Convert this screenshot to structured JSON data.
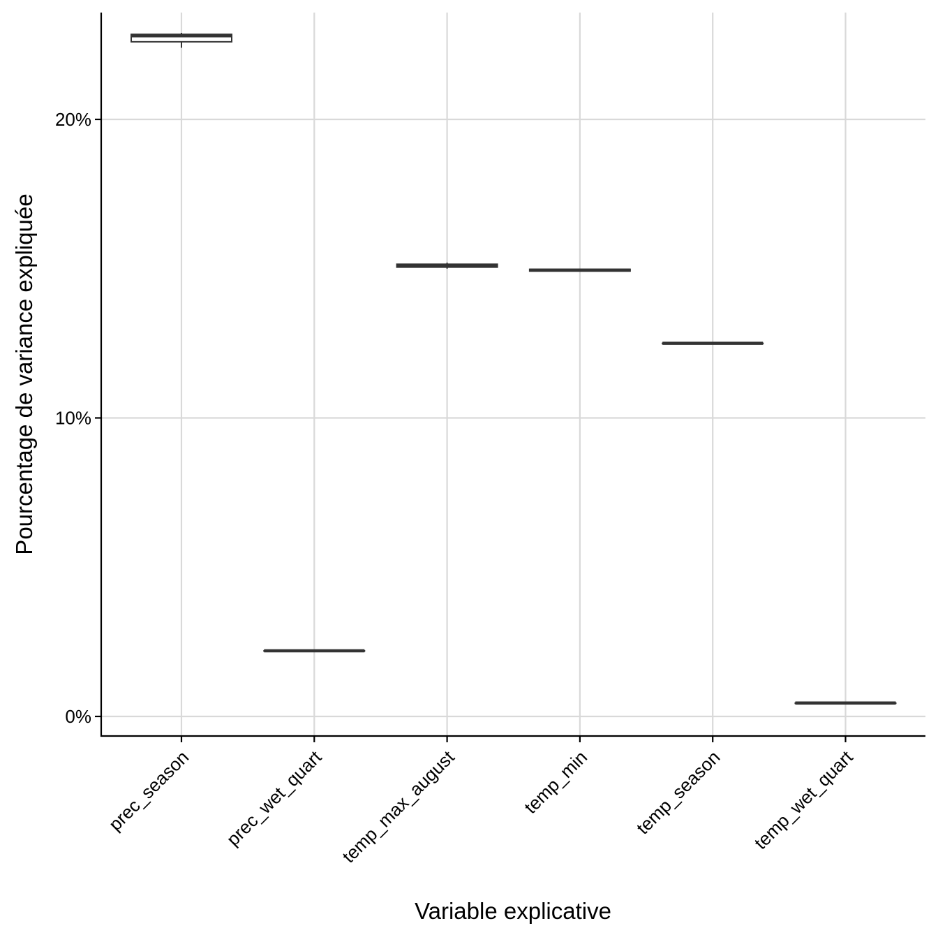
{
  "chart_data": {
    "type": "box",
    "title": "",
    "xlabel": "Variable explicative",
    "ylabel": "Pourcentage de variance expliquée",
    "ylim": [
      -0.6,
      23.6
    ],
    "y_ticks": [
      0,
      10,
      20
    ],
    "y_tick_labels": [
      "0%",
      "10%",
      "20%"
    ],
    "grid": true,
    "legend": "none",
    "categories": [
      "prec_season",
      "prec_wet_quart",
      "temp_max_august",
      "temp_min",
      "temp_season",
      "temp_wet_quart"
    ],
    "boxes": [
      {
        "category": "prec_season",
        "whisker_low": 22.4,
        "q1": 22.6,
        "median": 22.8,
        "q3": 22.85,
        "whisker_high": 22.9
      },
      {
        "category": "prec_wet_quart",
        "whisker_low": 2.2,
        "q1": 2.2,
        "median": 2.2,
        "q3": 2.2,
        "whisker_high": 2.2
      },
      {
        "category": "temp_max_august",
        "whisker_low": 15.0,
        "q1": 15.05,
        "median": 15.1,
        "q3": 15.15,
        "whisker_high": 15.2
      },
      {
        "category": "temp_min",
        "whisker_low": 14.9,
        "q1": 14.92,
        "median": 14.95,
        "q3": 14.98,
        "whisker_high": 15.0
      },
      {
        "category": "temp_season",
        "whisker_low": 12.5,
        "q1": 12.5,
        "median": 12.5,
        "q3": 12.5,
        "whisker_high": 12.5
      },
      {
        "category": "temp_wet_quart",
        "whisker_low": 0.45,
        "q1": 0.45,
        "median": 0.45,
        "q3": 0.45,
        "whisker_high": 0.45
      }
    ],
    "colors": {
      "box_stroke": "#333333",
      "box_fill": "#ffffff",
      "grid": "#d9d9d9",
      "axis": "#000000"
    }
  }
}
